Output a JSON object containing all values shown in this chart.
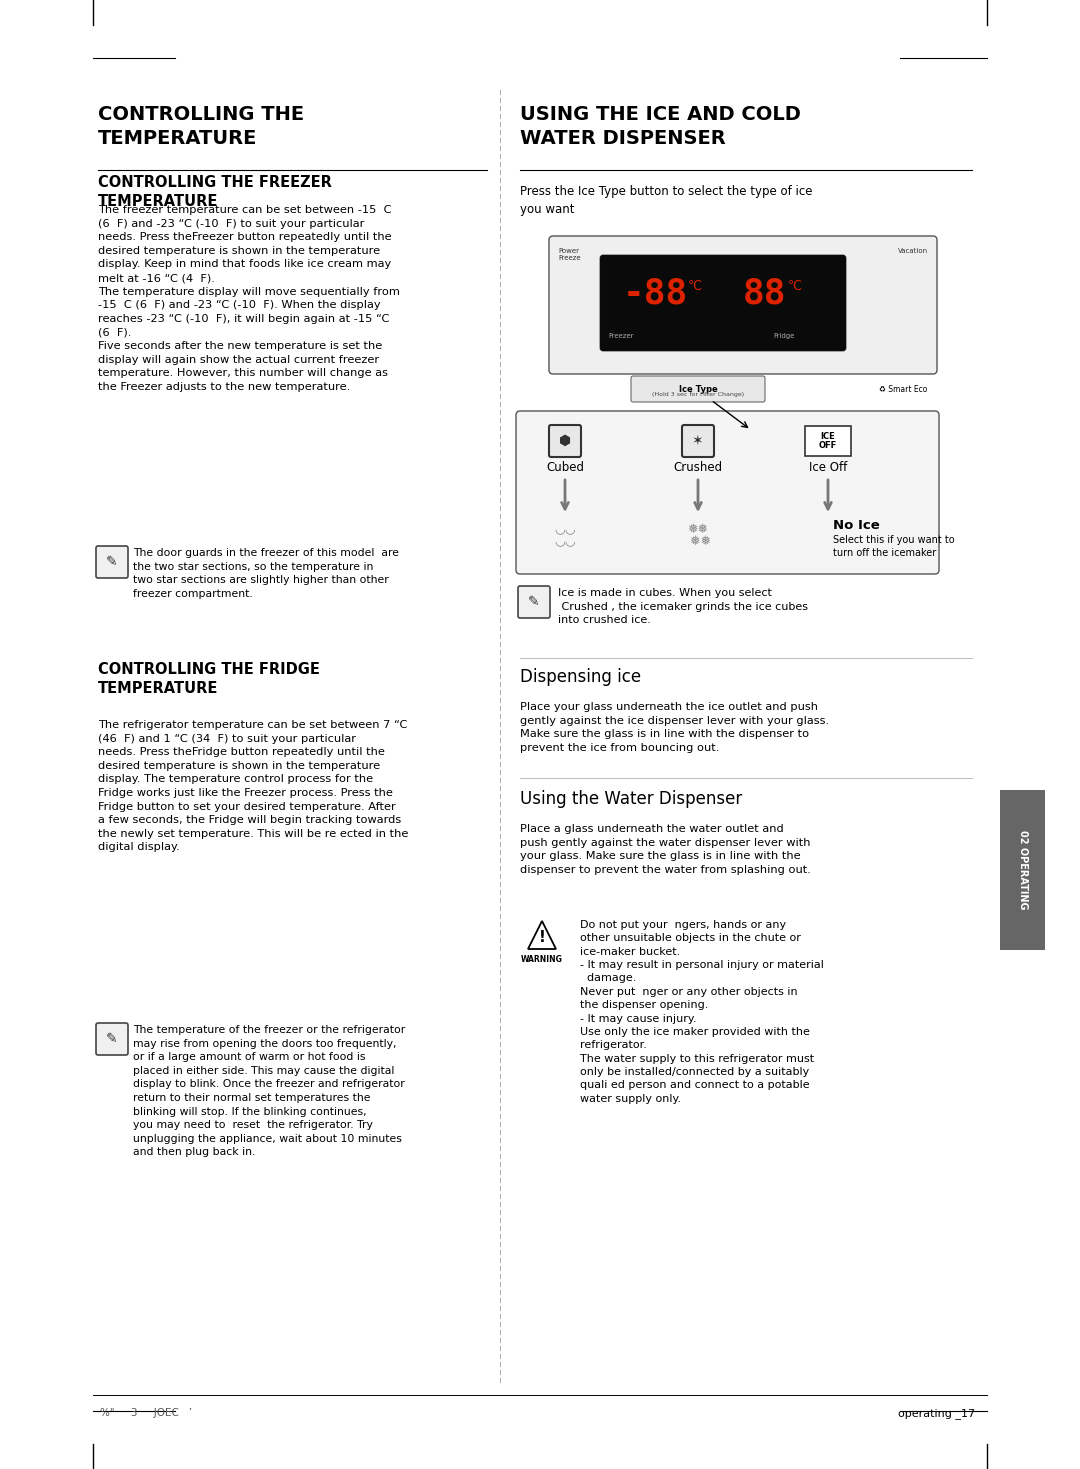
{
  "bg_color": "#ffffff",
  "page_number": "operating _17",
  "footer_left": "%\"     3     JOEC   ’",
  "tab_text": "02 OPERATING",
  "main_title_left": "CONTROLLING THE\nTEMPERATURE",
  "main_title_right": "USING THE ICE AND COLD\nWATER DISPENSER",
  "sub_title1": "CONTROLLING THE FREEZER\nTEMPERATURE",
  "body1": "The freezer temperature can be set between -15  C\n(6  F) and -23 “C (-10  F) to suit your particular\nneeds. Press theFreezer button repeatedly until the\ndesired temperature is shown in the temperature\ndisplay. Keep in mind that foods like ice cream may\nmelt at -16 “C (4  F).\nThe temperature display will move sequentially from\n-15  C (6  F) and -23 “C (-10  F). When the display\nreaches -23 “C (-10  F), it will begin again at -15 “C\n(6  F).\nFive seconds after the new temperature is set the\ndisplay will again show the actual current freezer\ntemperature. However, this number will change as\nthe Freezer adjusts to the new temperature.",
  "note1": "The door guards in the freezer of this model  are\nthe two star sections, so the temperature in\ntwo star sections are slightly higher than other\nfreezer compartment.",
  "sub_title2": "CONTROLLING THE FRIDGE\nTEMPERATURE",
  "body2": "The refrigerator temperature can be set between 7 “C\n(46  F) and 1 “C (34  F) to suit your particular\nneeds. Press theFridge button repeatedly until the\ndesired temperature is shown in the temperature\ndisplay. The temperature control process for the\nFridge works just like the Freezer process. Press the\nFridge button to set your desired temperature. After\na few seconds, the Fridge will begin tracking towards\nthe newly set temperature. This will be re ected in the\ndigital display.",
  "note2": "The temperature of the freezer or the refrigerator\nmay rise from opening the doors too frequently,\nor if a large amount of warm or hot food is\nplaced in either side. This may cause the digital\ndisplay to blink. Once the freezer and refrigerator\nreturn to their normal set temperatures the\nblinking will stop. If the blinking continues,\nyou may need to  reset  the refrigerator. Try\nunplugging the appliance, wait about 10 minutes\nand then plug back in.",
  "right_intro": "Press the Ice Type button to select the type of ice\nyou want",
  "ice_note": "Ice is made in cubes. When you select\n Crushed , the icemaker grinds the ice cubes\ninto crushed ice.",
  "disp_ice_title": "Dispensing ice",
  "disp_ice_body": "Place your glass underneath the ice outlet and push\ngently against the ice dispenser lever with your glass.\nMake sure the glass is in line with the dispenser to\nprevent the ice from bouncing out.",
  "water_disp_title": "Using the Water Dispenser",
  "water_disp_body": "Place a glass underneath the water outlet and\npush gently against the water dispenser lever with\nyour glass. Make sure the glass is in line with the\ndispenser to prevent the water from splashing out.",
  "warning_body": "Do not put your  ngers, hands or any\nother unsuitable objects in the chute or\nice-maker bucket.\n- It may result in personal injury or material\n  damage.\nNever put  nger or any other objects in\nthe dispenser opening.\n- It may cause injury.\nUse only the ice maker provided with the\nrefrigerator.\nThe water supply to this refrigerator must\nonly be installed/connected by a suitably\nquali ed person and connect to a potable\nwater supply only."
}
